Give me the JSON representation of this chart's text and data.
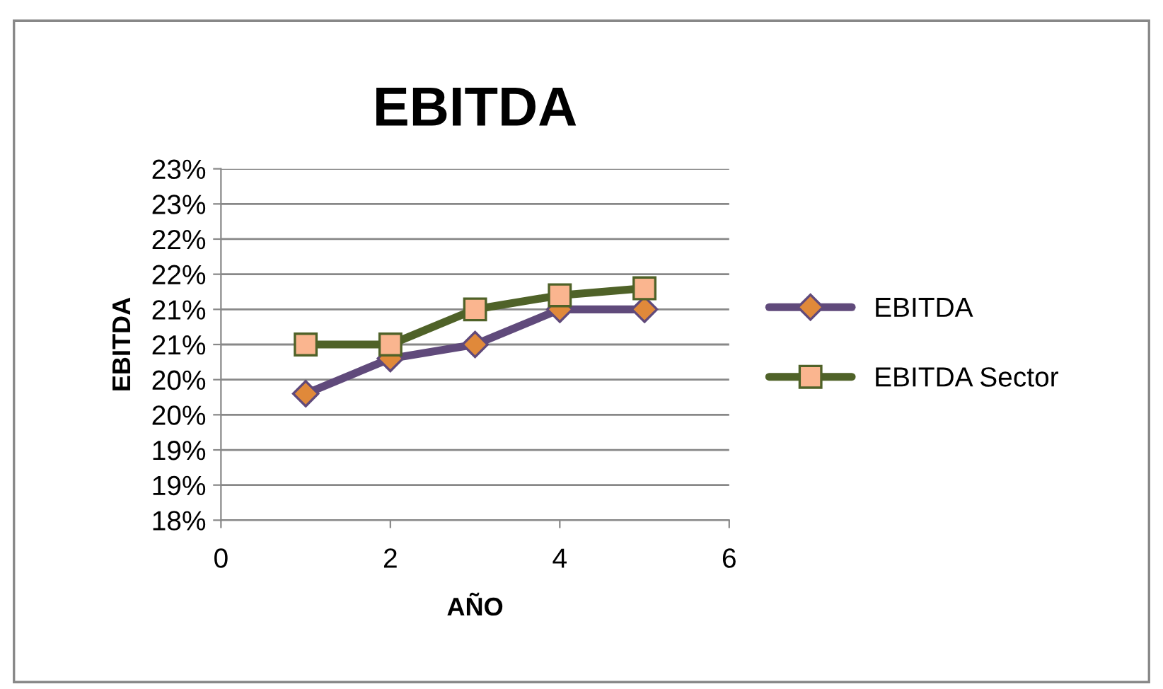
{
  "chart_data": {
    "type": "line",
    "title": "EBITDA",
    "xlabel": "AÑO",
    "ylabel": "EBITDA",
    "xlim": [
      0,
      6
    ],
    "xticks": [
      0,
      2,
      4,
      6
    ],
    "ylim": [
      18,
      23
    ],
    "yticks": [
      {
        "value": 18,
        "label": "18%"
      },
      {
        "value": 18.5,
        "label": "19%"
      },
      {
        "value": 19,
        "label": "19%"
      },
      {
        "value": 19.5,
        "label": "20%"
      },
      {
        "value": 20,
        "label": "20%"
      },
      {
        "value": 20.5,
        "label": "21%"
      },
      {
        "value": 21,
        "label": "21%"
      },
      {
        "value": 21.5,
        "label": "22%"
      },
      {
        "value": 22,
        "label": "22%"
      },
      {
        "value": 22.5,
        "label": "23%"
      },
      {
        "value": 23,
        "label": "23%"
      }
    ],
    "x": [
      1,
      2,
      3,
      4,
      5
    ],
    "series": [
      {
        "name": "EBITDA",
        "color": "#604a7b",
        "marker": "diamond",
        "values": [
          19.8,
          20.3,
          20.5,
          21.0,
          21.0
        ]
      },
      {
        "name": "EBITDA Sector",
        "color": "#4f6228",
        "marker": "square",
        "values": [
          20.5,
          20.5,
          21.0,
          21.2,
          21.3
        ]
      }
    ],
    "grid": "y",
    "legend": "right",
    "line_style": "solid"
  }
}
